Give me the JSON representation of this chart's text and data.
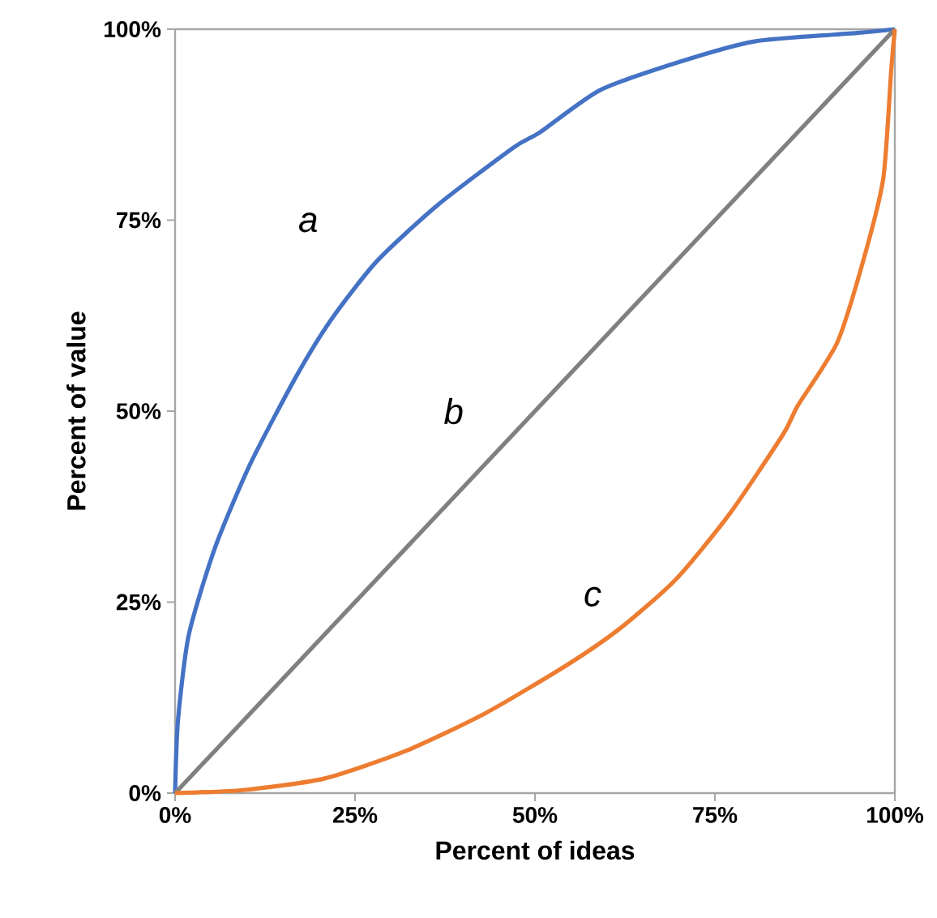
{
  "chart_data": {
    "type": "line",
    "xlabel": "Percent of ideas",
    "ylabel": "Percent of value",
    "xlim": [
      0,
      100
    ],
    "ylim": [
      0,
      100
    ],
    "xticks": [
      {
        "value": 0,
        "label": "0%"
      },
      {
        "value": 25,
        "label": "25%"
      },
      {
        "value": 50,
        "label": "50%"
      },
      {
        "value": 75,
        "label": "75%"
      },
      {
        "value": 100,
        "label": "100%"
      }
    ],
    "yticks": [
      {
        "value": 0,
        "label": "0%"
      },
      {
        "value": 25,
        "label": "25%"
      },
      {
        "value": 50,
        "label": "50%"
      },
      {
        "value": 75,
        "label": "75%"
      },
      {
        "value": 100,
        "label": "100%"
      }
    ],
    "grid": false,
    "legend": false,
    "marker": "none",
    "line_style": "solid",
    "series": [
      {
        "name": "a",
        "color": "#4472c4",
        "x": [
          0,
          0.4,
          1.9,
          5.5,
          10.4,
          16.8,
          21.7,
          28,
          36.5,
          47,
          50.7,
          59,
          70,
          80.5,
          94.7,
          100
        ],
        "values": [
          0,
          9.5,
          20.7,
          32,
          43,
          54.5,
          62,
          69.6,
          77,
          84.5,
          86.5,
          92,
          95.7,
          98.4,
          99.5,
          100
        ]
      },
      {
        "name": "b",
        "color": "#808080",
        "x": [
          0,
          100
        ],
        "values": [
          0,
          100
        ]
      },
      {
        "name": "c",
        "color": "#ed7d31",
        "x": [
          0,
          9.5,
          20.7,
          32,
          43,
          54.5,
          62,
          69.6,
          77,
          84.5,
          86.5,
          92,
          95.7,
          98.4,
          99.5,
          100
        ],
        "values": [
          0,
          0.4,
          1.9,
          5.5,
          10.4,
          16.8,
          21.7,
          28,
          36.5,
          47,
          50.7,
          59,
          70,
          80.5,
          94.7,
          100
        ]
      }
    ]
  }
}
